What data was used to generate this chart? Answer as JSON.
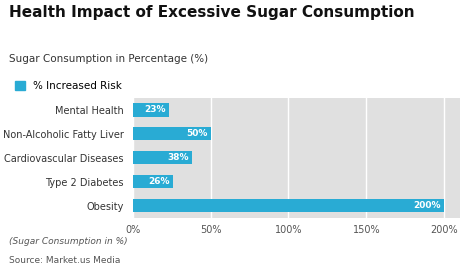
{
  "title": "Health Impact of Excessive Sugar Consumption",
  "subtitle": "Sugar Consumption in Percentage (%)",
  "legend_label": "% Increased Risk",
  "categories": [
    "Mental Health",
    "Non-Alcoholic Fatty Liver",
    "Cardiovascular Diseases",
    "Type 2 Diabetes",
    "Obesity"
  ],
  "values": [
    23,
    50,
    38,
    26,
    200
  ],
  "bar_color": "#29ABD4",
  "xlim": [
    0,
    210
  ],
  "xticks": [
    0,
    50,
    100,
    150,
    200
  ],
  "xticklabels": [
    "0%",
    "50%",
    "100%",
    "150%",
    "200%"
  ],
  "fig_bg_color": "#ffffff",
  "plot_bg_color": "#e0e0e0",
  "grid_color": "#ffffff",
  "title_fontsize": 11,
  "subtitle_fontsize": 7.5,
  "legend_fontsize": 7.5,
  "label_fontsize": 7,
  "tick_fontsize": 7,
  "bar_label_fontsize": 6.5,
  "footer_line1": "(Sugar Consumption in %)",
  "footer_line2": "Source: Market.us Media",
  "footer_fontsize": 6.5,
  "bar_height": 0.55
}
